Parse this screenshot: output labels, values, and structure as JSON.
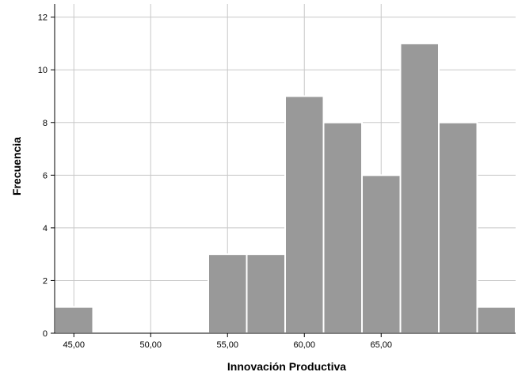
{
  "chart_data": {
    "type": "bar",
    "subtype": "histogram",
    "xlabel": "Innovación  Productiva",
    "ylabel": "Frecuencia",
    "bin_width": 2.5,
    "bins": [
      {
        "start": 43.75,
        "end": 46.25,
        "count": 1
      },
      {
        "start": 46.25,
        "end": 48.75,
        "count": 0
      },
      {
        "start": 48.75,
        "end": 51.25,
        "count": 0
      },
      {
        "start": 51.25,
        "end": 53.75,
        "count": 0
      },
      {
        "start": 53.75,
        "end": 56.25,
        "count": 3
      },
      {
        "start": 56.25,
        "end": 58.75,
        "count": 3
      },
      {
        "start": 58.75,
        "end": 61.25,
        "count": 9
      },
      {
        "start": 61.25,
        "end": 63.75,
        "count": 8
      },
      {
        "start": 63.75,
        "end": 66.25,
        "count": 6
      },
      {
        "start": 66.25,
        "end": 68.75,
        "count": 11
      },
      {
        "start": 68.75,
        "end": 71.25,
        "count": 8
      },
      {
        "start": 71.25,
        "end": 73.75,
        "count": 1
      }
    ],
    "xlim": [
      43.75,
      73.75
    ],
    "x_ticks": [
      {
        "value": 45,
        "label": "45,00"
      },
      {
        "value": 50,
        "label": "50,00"
      },
      {
        "value": 55,
        "label": "55,00"
      },
      {
        "value": 60,
        "label": "60,00"
      },
      {
        "value": 65,
        "label": "65,00"
      }
    ],
    "ylim": [
      0,
      12.5
    ],
    "y_ticks": [
      {
        "value": 0,
        "label": "0"
      },
      {
        "value": 2,
        "label": "2"
      },
      {
        "value": 4,
        "label": "4"
      },
      {
        "value": 6,
        "label": "6"
      },
      {
        "value": 8,
        "label": "8"
      },
      {
        "value": 10,
        "label": "10"
      },
      {
        "value": 12,
        "label": "12"
      }
    ],
    "grid": true,
    "colors": {
      "bar_fill": "#999999",
      "bar_stroke": "#ffffff",
      "grid": "#c8c8c8",
      "axis": "#000000"
    }
  }
}
